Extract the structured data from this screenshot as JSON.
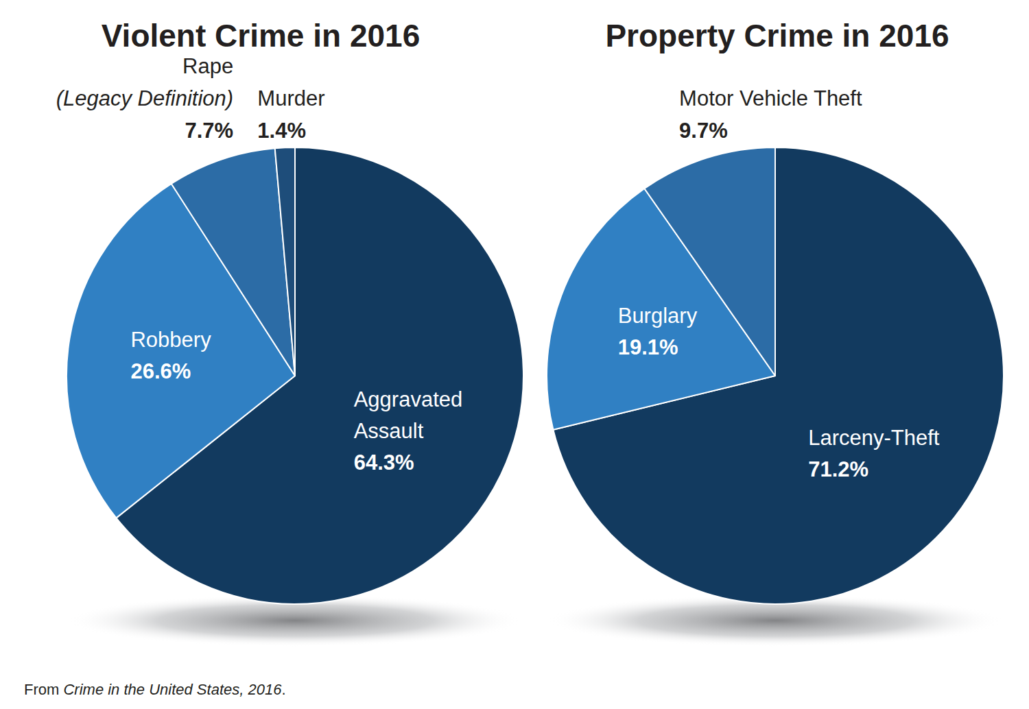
{
  "chart_data": [
    {
      "type": "pie",
      "title": "Violent Crime in 2016",
      "categories": [
        "Aggravated Assault",
        "Robbery",
        "Rape (Legacy Definition)",
        "Murder"
      ],
      "values": [
        64.3,
        26.6,
        7.7,
        1.4
      ],
      "value_labels": [
        "64.3%",
        "26.6%",
        "7.7%",
        "1.4%"
      ],
      "colors": [
        "#123a5f",
        "#3080c3",
        "#2c6ca6",
        "#1e4d7a"
      ],
      "data_labels": true
    },
    {
      "type": "pie",
      "title": "Property Crime in 2016",
      "categories": [
        "Larceny-Theft",
        "Burglary",
        "Motor Vehicle Theft"
      ],
      "values": [
        71.2,
        19.1,
        9.7
      ],
      "value_labels": [
        "71.2%",
        "19.1%",
        "9.7%"
      ],
      "colors": [
        "#123a5f",
        "#3080c3",
        "#2c6ca6"
      ],
      "data_labels": true
    }
  ],
  "source": {
    "prefix": "From ",
    "title": "Crime in the United States, 2016",
    "suffix": "."
  }
}
